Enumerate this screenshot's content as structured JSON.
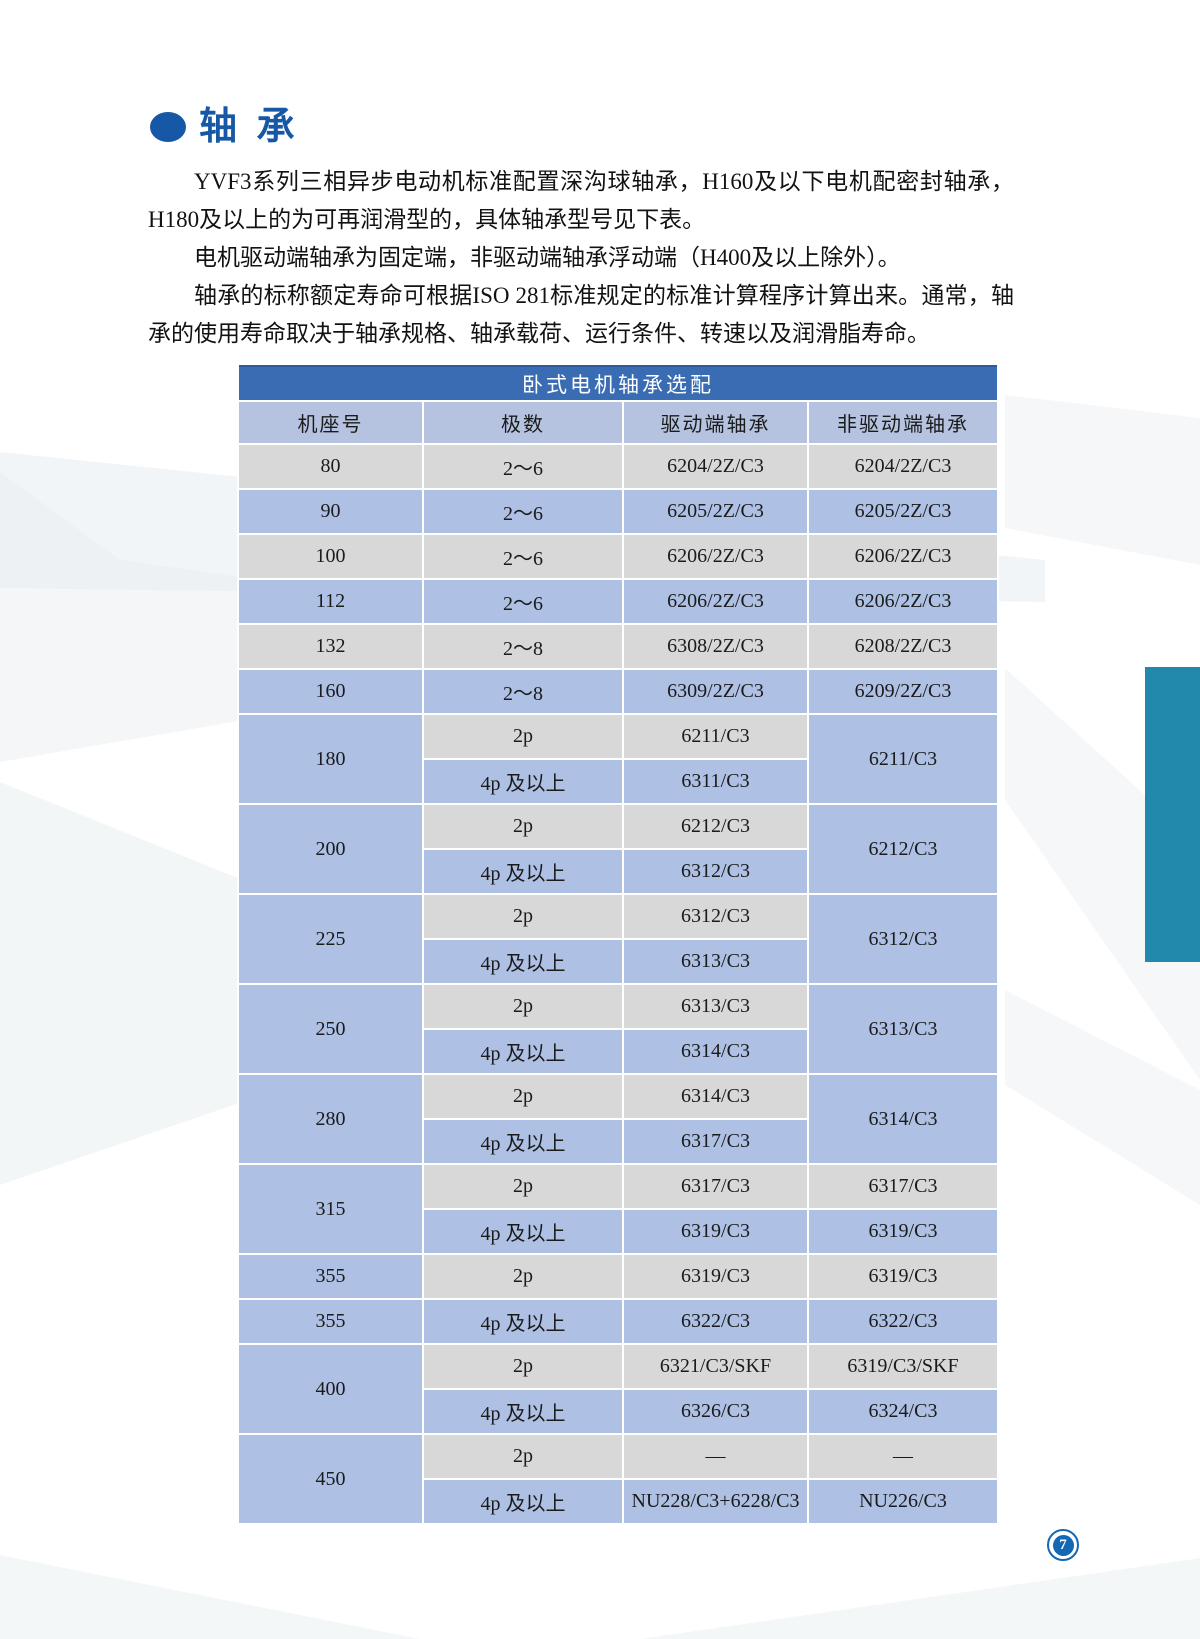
{
  "page": {
    "section_title": "轴 承",
    "paragraphs": [
      "YVF3系列三相异步电动机标准配置深沟球轴承，H160及以下电机配密封轴承，H180及以上的为可再润滑型的，具体轴承型号见下表。",
      "电机驱动端轴承为固定端，非驱动端轴承浮动端（H400及以上除外）。",
      "轴承的标称额定寿命可根据ISO 281标准规定的标准计算程序计算出来。通常，轴承的使用寿命取决于轴承规格、轴承载荷、运行条件、转速以及润滑脂寿命。"
    ],
    "page_number": "7"
  },
  "table": {
    "title": "卧式电机轴承选配",
    "columns": [
      "机座号",
      "极数",
      "驱动端轴承",
      "非驱动端轴承"
    ],
    "rows": [
      [
        {
          "t": "80",
          "bg": "gray"
        },
        {
          "t": "2～6",
          "bg": "gray"
        },
        {
          "t": "6204/2Z/C3",
          "bg": "gray"
        },
        {
          "t": "6204/2Z/C3",
          "bg": "gray"
        }
      ],
      [
        {
          "t": "90",
          "bg": "blue"
        },
        {
          "t": "2～6",
          "bg": "blue"
        },
        {
          "t": "6205/2Z/C3",
          "bg": "blue"
        },
        {
          "t": "6205/2Z/C3",
          "bg": "blue"
        }
      ],
      [
        {
          "t": "100",
          "bg": "gray"
        },
        {
          "t": "2～6",
          "bg": "gray"
        },
        {
          "t": "6206/2Z/C3",
          "bg": "gray"
        },
        {
          "t": "6206/2Z/C3",
          "bg": "gray"
        }
      ],
      [
        {
          "t": "112",
          "bg": "blue"
        },
        {
          "t": "2～6",
          "bg": "blue"
        },
        {
          "t": "6206/2Z/C3",
          "bg": "blue"
        },
        {
          "t": "6206/2Z/C3",
          "bg": "blue"
        }
      ],
      [
        {
          "t": "132",
          "bg": "gray"
        },
        {
          "t": "2～8",
          "bg": "gray"
        },
        {
          "t": "6308/2Z/C3",
          "bg": "gray"
        },
        {
          "t": "6208/2Z/C3",
          "bg": "gray"
        }
      ],
      [
        {
          "t": "160",
          "bg": "blue"
        },
        {
          "t": "2～8",
          "bg": "blue"
        },
        {
          "t": "6309/2Z/C3",
          "bg": "blue"
        },
        {
          "t": "6209/2Z/C3",
          "bg": "blue"
        }
      ],
      [
        {
          "t": "180",
          "bg": "blue",
          "rs": 2
        },
        {
          "t": "2p",
          "bg": "gray"
        },
        {
          "t": "6211/C3",
          "bg": "gray"
        },
        {
          "t": "6211/C3",
          "bg": "blue",
          "rs": 2
        }
      ],
      [
        {
          "t": "4p 及以上",
          "bg": "blue"
        },
        {
          "t": "6311/C3",
          "bg": "blue"
        }
      ],
      [
        {
          "t": "200",
          "bg": "blue",
          "rs": 2
        },
        {
          "t": "2p",
          "bg": "gray"
        },
        {
          "t": "6212/C3",
          "bg": "gray"
        },
        {
          "t": "6212/C3",
          "bg": "blue",
          "rs": 2
        }
      ],
      [
        {
          "t": "4p 及以上",
          "bg": "blue"
        },
        {
          "t": "6312/C3",
          "bg": "blue"
        }
      ],
      [
        {
          "t": "225",
          "bg": "blue",
          "rs": 2
        },
        {
          "t": "2p",
          "bg": "gray"
        },
        {
          "t": "6312/C3",
          "bg": "gray"
        },
        {
          "t": "6312/C3",
          "bg": "blue",
          "rs": 2
        }
      ],
      [
        {
          "t": "4p 及以上",
          "bg": "blue"
        },
        {
          "t": "6313/C3",
          "bg": "blue"
        }
      ],
      [
        {
          "t": "250",
          "bg": "blue",
          "rs": 2
        },
        {
          "t": "2p",
          "bg": "gray"
        },
        {
          "t": "6313/C3",
          "bg": "gray"
        },
        {
          "t": "6313/C3",
          "bg": "blue",
          "rs": 2
        }
      ],
      [
        {
          "t": "4p 及以上",
          "bg": "blue"
        },
        {
          "t": "6314/C3",
          "bg": "blue"
        }
      ],
      [
        {
          "t": "280",
          "bg": "blue",
          "rs": 2
        },
        {
          "t": "2p",
          "bg": "gray"
        },
        {
          "t": "6314/C3",
          "bg": "gray"
        },
        {
          "t": "6314/C3",
          "bg": "blue",
          "rs": 2
        }
      ],
      [
        {
          "t": "4p 及以上",
          "bg": "blue"
        },
        {
          "t": "6317/C3",
          "bg": "blue"
        }
      ],
      [
        {
          "t": "315",
          "bg": "blue",
          "rs": 2
        },
        {
          "t": "2p",
          "bg": "gray"
        },
        {
          "t": "6317/C3",
          "bg": "gray"
        },
        {
          "t": "6317/C3",
          "bg": "gray"
        }
      ],
      [
        {
          "t": "4p 及以上",
          "bg": "blue"
        },
        {
          "t": "6319/C3",
          "bg": "blue"
        },
        {
          "t": "6319/C3",
          "bg": "blue"
        }
      ],
      [
        {
          "t": "355",
          "bg": "blue"
        },
        {
          "t": "2p",
          "bg": "gray"
        },
        {
          "t": "6319/C3",
          "bg": "gray"
        },
        {
          "t": "6319/C3",
          "bg": "gray"
        }
      ],
      [
        {
          "t": "355",
          "bg": "blue"
        },
        {
          "t": "4p 及以上",
          "bg": "blue"
        },
        {
          "t": "6322/C3",
          "bg": "blue"
        },
        {
          "t": "6322/C3",
          "bg": "blue"
        }
      ],
      [
        {
          "t": "400",
          "bg": "blue",
          "rs": 2
        },
        {
          "t": "2p",
          "bg": "gray"
        },
        {
          "t": "6321/C3/SKF",
          "bg": "gray"
        },
        {
          "t": "6319/C3/SKF",
          "bg": "gray"
        }
      ],
      [
        {
          "t": "4p 及以上",
          "bg": "blue"
        },
        {
          "t": "6326/C3",
          "bg": "blue"
        },
        {
          "t": "6324/C3",
          "bg": "blue"
        }
      ],
      [
        {
          "t": "450",
          "bg": "blue",
          "rs": 2
        },
        {
          "t": "2p",
          "bg": "gray"
        },
        {
          "t": "—",
          "bg": "gray"
        },
        {
          "t": "—",
          "bg": "gray"
        }
      ],
      [
        {
          "t": "4p 及以上",
          "bg": "blue"
        },
        {
          "t": "NU228/C3+6228/C3",
          "bg": "blue"
        },
        {
          "t": "NU226/C3",
          "bg": "blue"
        }
      ]
    ]
  },
  "colors": {
    "accent_blue": "#1658a5",
    "table_title_bar": "#3a6cb4",
    "table_header_bg": "#b5c3e1",
    "row_blue": "#aec0e4",
    "row_gray": "#d8d8d8",
    "teal_accent": "#2289ad",
    "badge_blue": "#1467b2"
  },
  "icons": {
    "bullet": "filled-circle",
    "page_badge": "circled-number"
  }
}
